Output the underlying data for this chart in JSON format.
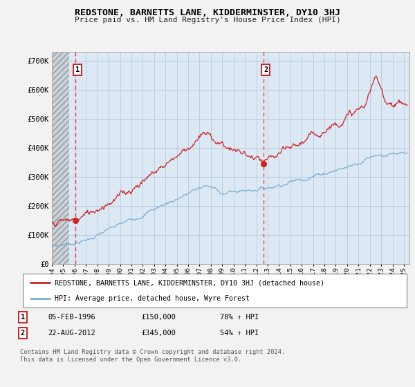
{
  "title": "REDSTONE, BARNETTS LANE, KIDDERMINSTER, DY10 3HJ",
  "subtitle": "Price paid vs. HM Land Registry's House Price Index (HPI)",
  "yticks": [
    0,
    100000,
    200000,
    300000,
    400000,
    500000,
    600000,
    700000
  ],
  "ytick_labels": [
    "£0",
    "£100K",
    "£200K",
    "£300K",
    "£400K",
    "£500K",
    "£600K",
    "£700K"
  ],
  "ylim": [
    0,
    730000
  ],
  "xlim_start": 1994.0,
  "xlim_end": 2025.5,
  "marker1_x": 1996.1,
  "marker1_y": 150000,
  "marker2_x": 2012.65,
  "marker2_y": 345000,
  "hpi_color": "#7bafd4",
  "price_color": "#cc2222",
  "vline_color": "#ee4444",
  "background_color": "#f2f2f2",
  "plot_bg_color": "#dce9f5",
  "hatch_color": "#b0b8c0",
  "legend_line1": "REDSTONE, BARNETTS LANE, KIDDERMINSTER, DY10 3HJ (detached house)",
  "legend_line2": "HPI: Average price, detached house, Wyre Forest",
  "table_row1": [
    "1",
    "05-FEB-1996",
    "£150,000",
    "78% ↑ HPI"
  ],
  "table_row2": [
    "2",
    "22-AUG-2012",
    "£345,000",
    "54% ↑ HPI"
  ],
  "footnote": "Contains HM Land Registry data © Crown copyright and database right 2024.\nThis data is licensed under the Open Government Licence v3.0."
}
